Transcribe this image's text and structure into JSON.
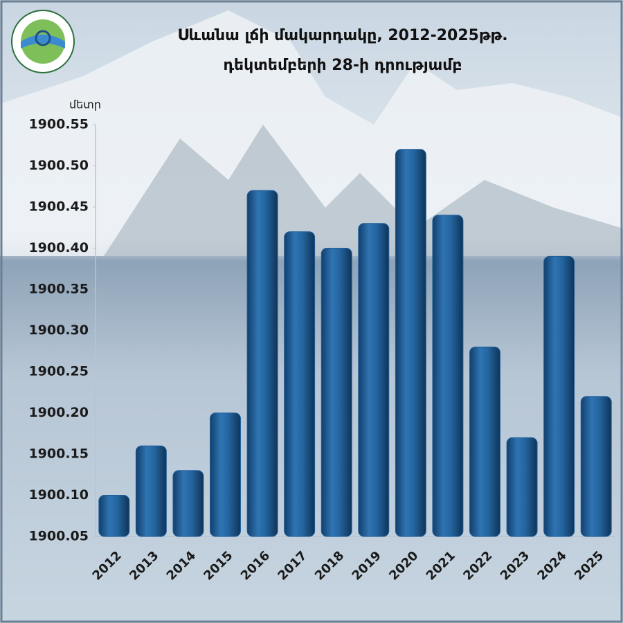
{
  "chart_data": {
    "type": "bar",
    "title": "Սևանա լճի մակարդակը, 2012-2025թթ.",
    "subtitle": "դեկտեմբերի 28-ի դրությամբ",
    "y_label": "մետր",
    "categories": [
      "2012",
      "2013",
      "2014",
      "2015",
      "2016",
      "2017",
      "2018",
      "2019",
      "2020",
      "2021",
      "2022",
      "2023",
      "2024",
      "2025"
    ],
    "values": [
      1900.1,
      1900.16,
      1900.13,
      1900.2,
      1900.47,
      1900.42,
      1900.4,
      1900.43,
      1900.52,
      1900.44,
      1900.28,
      1900.17,
      1900.39,
      1900.22
    ],
    "color": "#1f5f99",
    "ylim": [
      1900.05,
      1900.55
    ],
    "yticks": [
      1900.05,
      {
        "value": 1900.1,
        "label": "1900.10"
      },
      1900.15,
      {
        "value": 1900.2,
        "label": "1900.20"
      },
      1900.25,
      {
        "value": 1900.3,
        "label": "1900.30"
      },
      1900.35,
      {
        "value": 1900.4,
        "label": "1900.40"
      },
      1900.45,
      {
        "value": 1900.5,
        "label": "1900.50"
      },
      1900.55
    ]
  }
}
